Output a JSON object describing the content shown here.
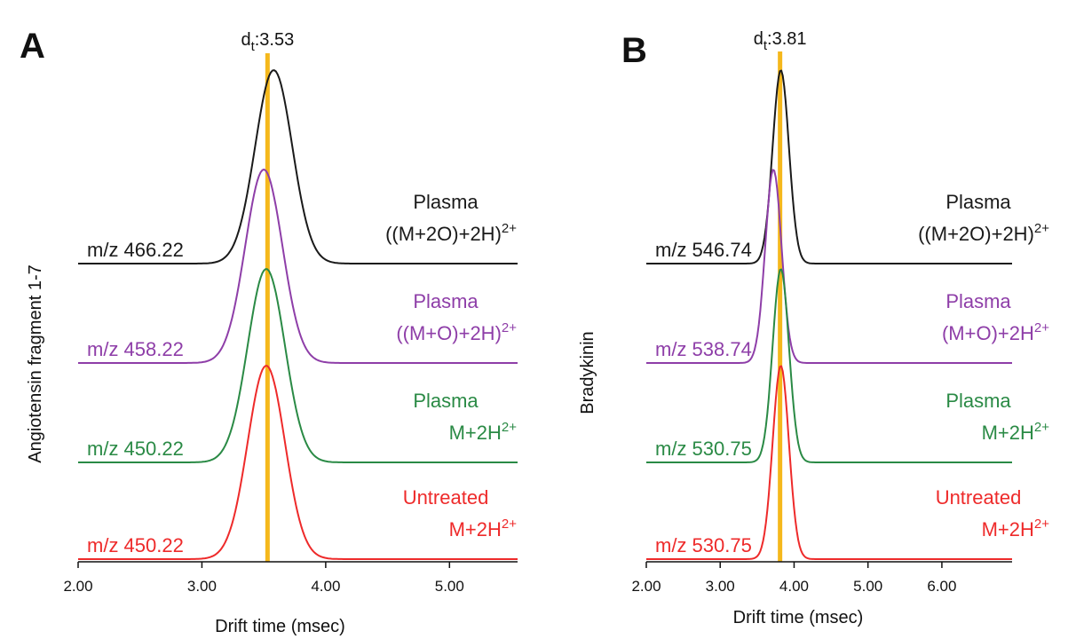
{
  "chart_data": [
    {
      "type": "line",
      "panel_letter": "A",
      "ylabel": "Angiotensin fragment 1-7",
      "xlabel": "Drift time (msec)",
      "xticks": [
        "2.00",
        "3.00",
        "4.00",
        "5.00"
      ],
      "xlim": [
        2.0,
        5.55
      ],
      "marker_label": {
        "prefix": "d",
        "sub": "t",
        "value": ":3.53"
      },
      "marker_x": 3.53,
      "marker_color": "#f5b81c",
      "series": [
        {
          "mz": "m/z 466.22",
          "cond": "Plasma",
          "ion": "((M+2O)+2H)",
          "sup": "2+",
          "color": "#1a1a1a",
          "peak_x": 3.58,
          "sigma": 0.15,
          "height": 1.0
        },
        {
          "mz": "m/z 458.22",
          "cond": "Plasma",
          "ion": "((M+O)+2H)",
          "sup": "2+",
          "color": "#8e3ea8",
          "peak_x": 3.5,
          "sigma": 0.15,
          "height": 1.0
        },
        {
          "mz": "m/z 450.22",
          "cond": "Plasma",
          "ion": "M+2H",
          "sup": "2+",
          "color": "#2a8a45",
          "peak_x": 3.52,
          "sigma": 0.15,
          "height": 1.0
        },
        {
          "mz": "m/z 450.22",
          "cond": "Untreated",
          "ion": "M+2H",
          "sup": "2+",
          "color": "#ee2a2a",
          "peak_x": 3.52,
          "sigma": 0.15,
          "height": 1.0
        }
      ]
    },
    {
      "type": "line",
      "panel_letter": "B",
      "ylabel": "Bradykinin",
      "xlabel": "Drift time (msec)",
      "xticks": [
        "2.00",
        "3.00",
        "4.00",
        "5.00",
        "6.00"
      ],
      "xlim": [
        2.0,
        6.95
      ],
      "marker_label": {
        "prefix": "d",
        "sub": "t",
        "value": ":3.81"
      },
      "marker_x": 3.81,
      "marker_color": "#f5b81c",
      "series": [
        {
          "mz": "m/z 546.74",
          "cond": "Plasma",
          "ion": "((M+2O)+2H)",
          "sup": "2+",
          "color": "#1a1a1a",
          "peak_x": 3.82,
          "sigma": 0.11,
          "height": 1.0
        },
        {
          "mz": "m/z 538.74",
          "cond": "Plasma",
          "ion": "(M+O)+2H",
          "sup": "2+",
          "color": "#8e3ea8",
          "peak_x": 3.72,
          "sigma": 0.11,
          "height": 1.0
        },
        {
          "mz": "m/z 530.75",
          "cond": "Plasma",
          "ion": "M+2H",
          "sup": "2+",
          "color": "#2a8a45",
          "peak_x": 3.82,
          "sigma": 0.11,
          "height": 1.0
        },
        {
          "mz": "m/z 530.75",
          "cond": "Untreated",
          "ion": "M+2H",
          "sup": "2+",
          "color": "#ee2a2a",
          "peak_x": 3.82,
          "sigma": 0.11,
          "height": 1.0
        }
      ]
    }
  ]
}
